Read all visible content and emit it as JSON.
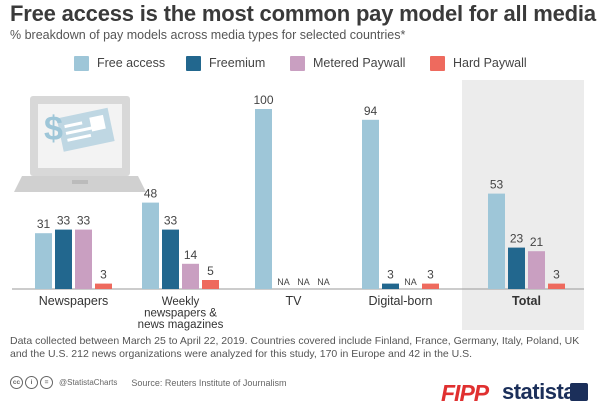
{
  "title": "Free access is the most common pay model for all media",
  "subtitle": "% breakdown of pay models across media types for selected countries*",
  "footnote": "Data collected between March 25 to April 22, 2019. Countries covered include Finland, France, Germany, Italy, Poland, UK and the U.S. 212 news organizations were analyzed for this study, 170 in Europe and 42 in the U.S.",
  "footer": {
    "handle": "@StatistaCharts",
    "source": "Source: Reuters Institute of Journalism",
    "cc_icons": [
      "cc-icon",
      "by-icon",
      "nd-icon"
    ],
    "logos": {
      "fipp": "FIPP",
      "statista": "statista"
    }
  },
  "colors": {
    "free_access": "#9ec6d8",
    "freemium": "#22678e",
    "metered_paywall": "#c99fc1",
    "hard_paywall": "#ee6a5e",
    "total_background": "#ececec"
  },
  "chart_data": {
    "type": "bar",
    "title": "Free access is the most common pay model for all media",
    "subtitle": "% breakdown of pay models across media types for selected countries*",
    "categories": [
      "Newspapers",
      "Weekly newspapers & news magazines",
      "TV",
      "Digital-born",
      "Total"
    ],
    "highlighted_category": "Total",
    "series": [
      {
        "name": "Free access",
        "color": "#9ec6d8",
        "values": [
          31,
          48,
          100,
          94,
          53
        ],
        "labels": [
          "31",
          "48",
          "100",
          "94",
          "53"
        ]
      },
      {
        "name": "Freemium",
        "color": "#22678e",
        "values": [
          33,
          33,
          null,
          3,
          23
        ],
        "labels": [
          "33",
          "33",
          "NA",
          "3",
          "23"
        ]
      },
      {
        "name": "Metered Paywall",
        "color": "#c99fc1",
        "values": [
          33,
          14,
          null,
          null,
          21
        ],
        "labels": [
          "33",
          "14",
          "NA",
          "NA",
          "21"
        ]
      },
      {
        "name": "Hard Paywall",
        "color": "#ee6a5e",
        "values": [
          3,
          5,
          null,
          3,
          3
        ],
        "labels": [
          "3",
          "5",
          "NA",
          "3",
          "3"
        ]
      }
    ],
    "ylim": [
      0,
      100
    ],
    "grid": false,
    "legend_position": "top",
    "decorations": [
      "laptop-icon"
    ]
  }
}
